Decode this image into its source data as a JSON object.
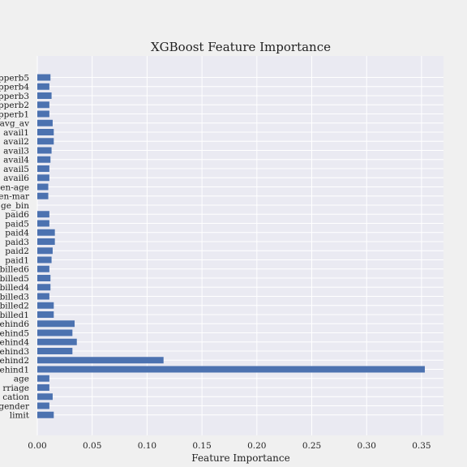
{
  "chart_data": {
    "type": "bar",
    "orientation": "horizontal",
    "title": "XGBoost Feature Importance",
    "xlabel": "Feature Importance",
    "ylabel": "",
    "xlim": [
      0,
      0.37
    ],
    "xticks": [
      "0.00",
      "0.05",
      "0.10",
      "0.15",
      "0.20",
      "0.25",
      "0.30",
      "0.35"
    ],
    "xtick_values": [
      0,
      0.05,
      0.1,
      0.15,
      0.2,
      0.25,
      0.3,
      0.35
    ],
    "grid": true,
    "categories_top_to_bottom": [
      "opperb5",
      "opperb4",
      "opperb3",
      "opperb2",
      "opperb1",
      "avg_av",
      "avail1",
      "avail2",
      "avail3",
      "avail4",
      "avail5",
      "avail6",
      "en-age",
      "en-mar",
      "ge_bin",
      "paid6",
      "paid5",
      "paid4",
      "paid3",
      "paid2",
      "paid1",
      "billed6",
      "billed5",
      "billed4",
      "billed3",
      "billed2",
      "billed1",
      "ehind6",
      "ehind5",
      "ehind4",
      "ehind3",
      "ehind2",
      "ehind1",
      "age",
      "rriage",
      "cation",
      "gender",
      "limit"
    ],
    "values_top_to_bottom": [
      0.012,
      0.011,
      0.013,
      0.011,
      0.011,
      0.014,
      0.015,
      0.015,
      0.013,
      0.012,
      0.011,
      0.011,
      0.01,
      0.01,
      0.0,
      0.011,
      0.011,
      0.016,
      0.016,
      0.014,
      0.013,
      0.011,
      0.012,
      0.012,
      0.011,
      0.015,
      0.015,
      0.034,
      0.032,
      0.036,
      0.032,
      0.115,
      0.353,
      0.011,
      0.011,
      0.014,
      0.011,
      0.015
    ],
    "bar_color": "#4c72b0",
    "plot_background": "#eaeaf2",
    "grid_color": "#ffffff"
  }
}
